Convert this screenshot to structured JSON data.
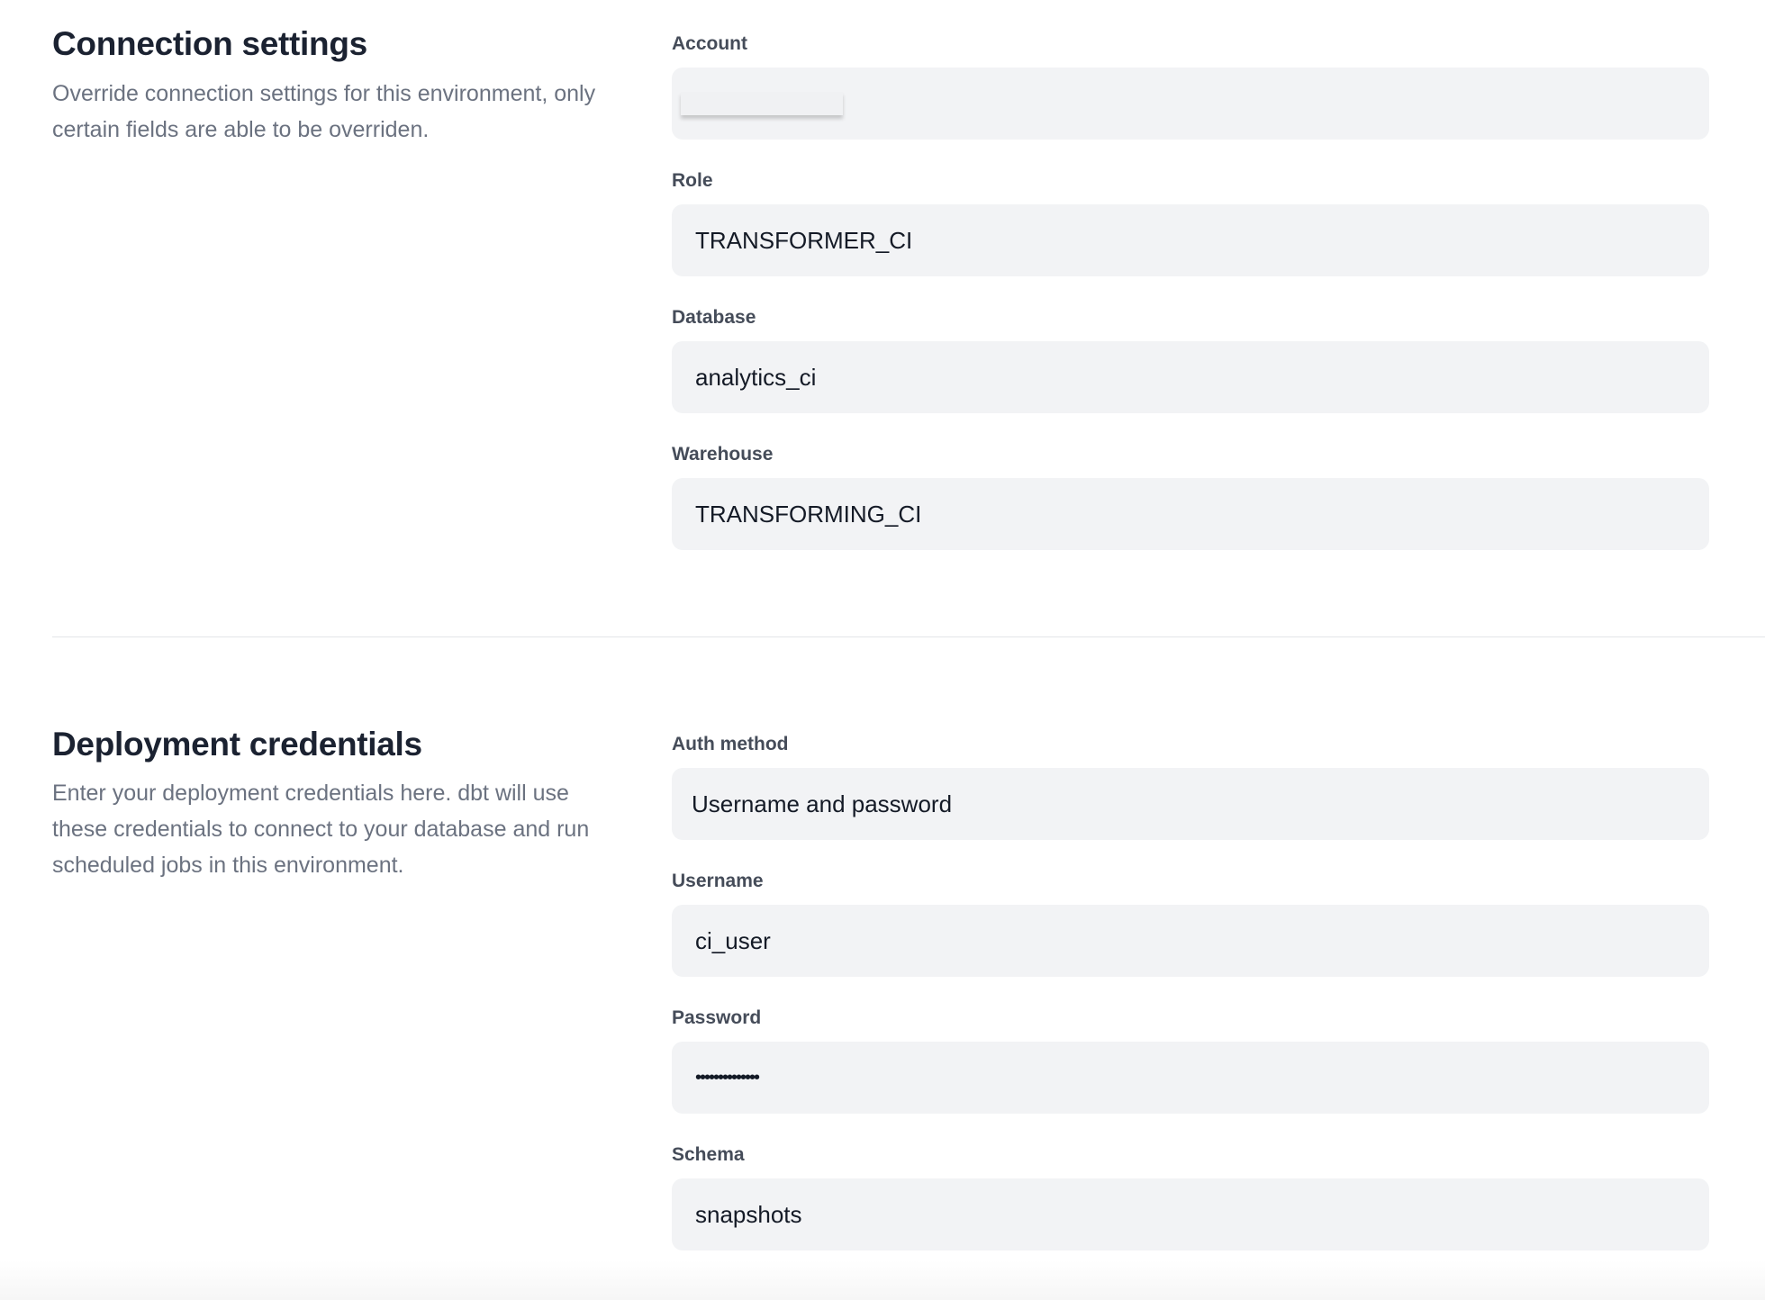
{
  "connection": {
    "title": "Connection settings",
    "description": "Override connection settings for this environment, only certain fields are able to be overriden.",
    "fields": [
      {
        "label": "Account",
        "value": ""
      },
      {
        "label": "Role",
        "value": "TRANSFORMER_CI"
      },
      {
        "label": "Database",
        "value": "analytics_ci"
      },
      {
        "label": "Warehouse",
        "value": "TRANSFORMING_CI"
      }
    ]
  },
  "credentials": {
    "title": "Deployment credentials",
    "description": "Enter your deployment credentials here. dbt will use these credentials to connect to your database and run scheduled jobs in this environment.",
    "fields": [
      {
        "label": "Auth method",
        "value": "Username and password"
      },
      {
        "label": "Username",
        "value": "ci_user"
      },
      {
        "label": "Password",
        "value": "••••••••••••••"
      },
      {
        "label": "Schema",
        "value": "snapshots"
      }
    ]
  }
}
